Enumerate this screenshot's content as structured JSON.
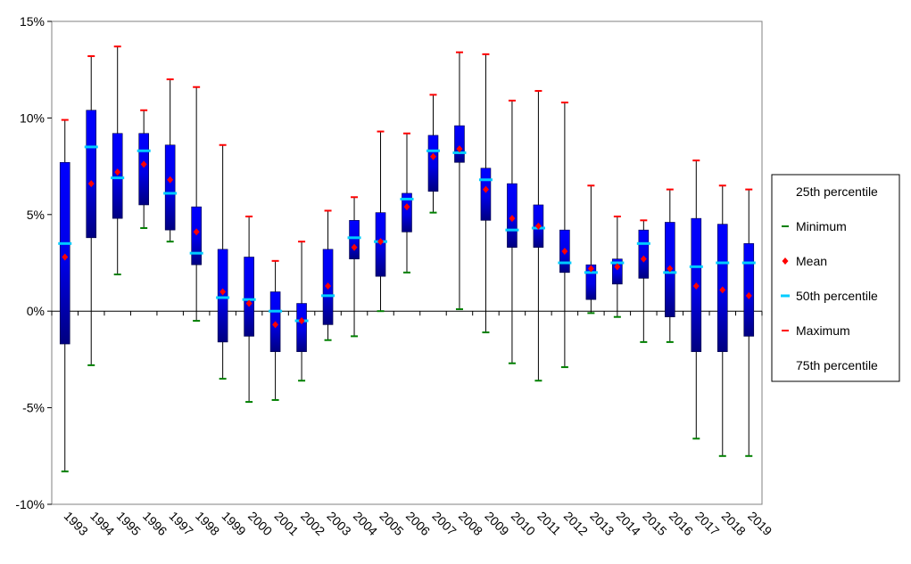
{
  "chart_data": {
    "type": "box",
    "title": "",
    "xlabel": "",
    "ylabel": "",
    "ylim": [
      -10,
      15
    ],
    "y_ticks": [
      -10,
      -5,
      0,
      5,
      10,
      15
    ],
    "y_tick_labels": [
      "-10%",
      "-5%",
      "0%",
      "5%",
      "10%",
      "15%"
    ],
    "grid": false,
    "legend_position": "right",
    "categories": [
      "1993",
      "1994",
      "1995",
      "1996",
      "1997",
      "1998",
      "1999",
      "2000",
      "2001",
      "2002",
      "2003",
      "2004",
      "2005",
      "2006",
      "2007",
      "2008",
      "2009",
      "2010",
      "2011",
      "2012",
      "2013",
      "2014",
      "2015",
      "2016",
      "2017",
      "2018",
      "2019"
    ],
    "series": [
      {
        "name": "25th percentile",
        "values": [
          -1.7,
          3.8,
          4.8,
          5.5,
          4.2,
          2.4,
          -1.6,
          -1.3,
          -2.1,
          -2.1,
          -0.7,
          2.7,
          1.8,
          4.1,
          6.2,
          7.7,
          4.7,
          3.3,
          3.3,
          2.0,
          0.6,
          1.4,
          1.7,
          -0.3,
          -2.1,
          -2.1,
          -1.3
        ]
      },
      {
        "name": "Minimum",
        "values": [
          -8.3,
          -2.8,
          1.9,
          4.3,
          3.6,
          -0.5,
          -3.5,
          -4.7,
          -4.6,
          -3.6,
          -1.5,
          -1.3,
          0.0,
          2.0,
          5.1,
          0.1,
          -1.1,
          -2.7,
          -3.6,
          -2.9,
          -0.1,
          -0.3,
          -1.6,
          -1.6,
          -6.6,
          -7.5,
          -7.5
        ]
      },
      {
        "name": "Mean",
        "values": [
          2.8,
          6.6,
          7.2,
          7.6,
          6.8,
          4.1,
          1.0,
          0.4,
          -0.7,
          -0.5,
          1.3,
          3.3,
          3.6,
          5.4,
          8.0,
          8.4,
          6.3,
          4.8,
          4.4,
          3.1,
          2.2,
          2.3,
          2.7,
          2.2,
          1.3,
          1.1,
          0.8
        ]
      },
      {
        "name": "50th percentile",
        "values": [
          3.5,
          8.5,
          6.9,
          8.3,
          6.1,
          3.0,
          0.7,
          0.6,
          0.0,
          -0.5,
          0.8,
          3.8,
          3.6,
          5.8,
          8.3,
          8.2,
          6.8,
          4.2,
          4.3,
          2.5,
          2.0,
          2.5,
          3.5,
          2.0,
          2.3,
          2.5,
          2.5
        ]
      },
      {
        "name": "Maximum",
        "values": [
          9.9,
          13.2,
          13.7,
          10.4,
          12.0,
          11.6,
          8.6,
          4.9,
          2.6,
          3.6,
          5.2,
          5.9,
          9.3,
          9.2,
          11.2,
          13.4,
          13.3,
          10.9,
          11.4,
          10.8,
          6.5,
          4.9,
          4.7,
          6.3,
          7.8,
          6.5,
          6.3
        ]
      },
      {
        "name": "75th percentile",
        "values": [
          7.7,
          10.4,
          9.2,
          9.2,
          8.6,
          5.4,
          3.2,
          2.8,
          1.0,
          0.4,
          3.2,
          4.7,
          5.1,
          6.1,
          9.1,
          9.6,
          7.4,
          6.6,
          5.5,
          4.2,
          2.4,
          2.7,
          4.2,
          4.6,
          4.8,
          4.5,
          3.5
        ]
      }
    ],
    "colors": {
      "box_top": "#0000ff",
      "box_bottom": "#000080",
      "whisker": "#000000",
      "minimum": "#008000",
      "maximum": "#ff0000",
      "mean": "#ff0000",
      "median": "#00ccff",
      "axis": "#000000",
      "frame": "#808080"
    }
  }
}
